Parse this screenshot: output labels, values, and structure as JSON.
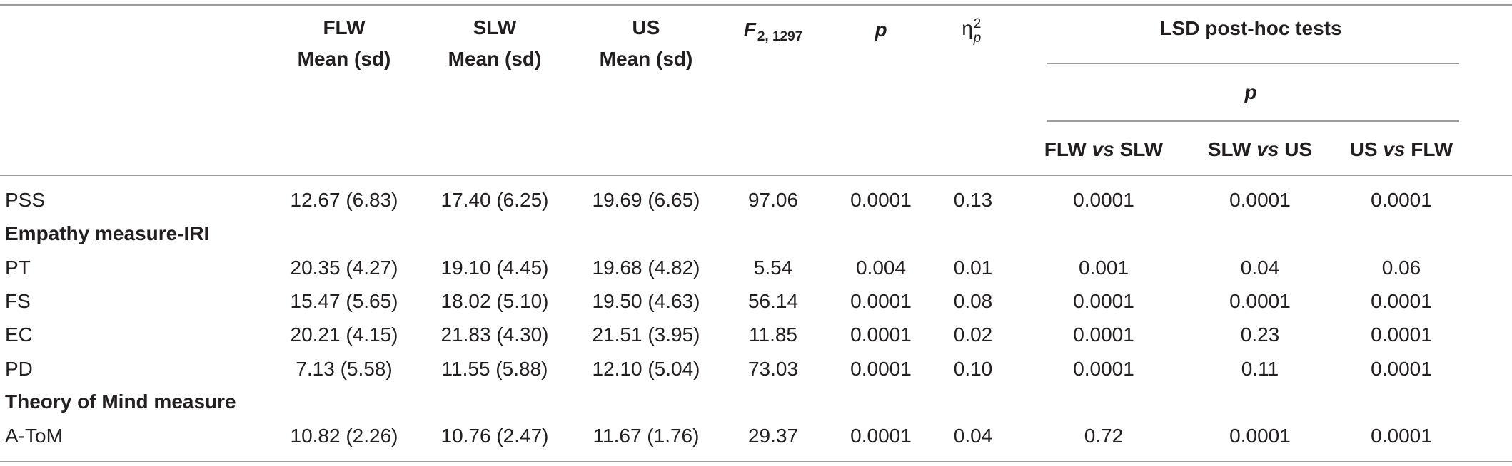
{
  "header": {
    "flw": {
      "group": "FLW",
      "stat": "Mean (sd)"
    },
    "slw": {
      "group": "SLW",
      "stat": "Mean (sd)"
    },
    "us": {
      "group": "US",
      "stat": "Mean (sd)"
    },
    "f": {
      "letter": "F",
      "df": "2, 1297"
    },
    "p": "p",
    "eta": {
      "symbol": "η",
      "sub": "p",
      "sup": "2"
    },
    "lsd": "LSD post-hoc tests",
    "lsd_p": "p",
    "comparisons": [
      {
        "a": "FLW",
        "vs": "vs",
        "b": "SLW"
      },
      {
        "a": "SLW",
        "vs": "vs",
        "b": "US"
      },
      {
        "a": "US",
        "vs": "vs",
        "b": "FLW"
      }
    ]
  },
  "rows": [
    {
      "label": "PSS",
      "flw": "12.67 (6.83)",
      "slw": "17.40 (6.25)",
      "us": "19.69 (6.65)",
      "f": "97.06",
      "p": "0.0001",
      "eta": "0.13",
      "flw_slw": "0.0001",
      "slw_us": "0.0001",
      "us_flw": "0.0001"
    },
    {
      "section": "Empathy measure-IRI"
    },
    {
      "label": "PT",
      "flw": "20.35 (4.27)",
      "slw": "19.10 (4.45)",
      "us": "19.68 (4.82)",
      "f": "5.54",
      "p": "0.004",
      "eta": "0.01",
      "flw_slw": "0.001",
      "slw_us": "0.04",
      "us_flw": "0.06"
    },
    {
      "label": "FS",
      "flw": "15.47 (5.65)",
      "slw": "18.02 (5.10)",
      "us": "19.50 (4.63)",
      "f": "56.14",
      "p": "0.0001",
      "eta": "0.08",
      "flw_slw": "0.0001",
      "slw_us": "0.0001",
      "us_flw": "0.0001"
    },
    {
      "label": "EC",
      "flw": "20.21 (4.15)",
      "slw": "21.83 (4.30)",
      "us": "21.51 (3.95)",
      "f": "11.85",
      "p": "0.0001",
      "eta": "0.02",
      "flw_slw": "0.0001",
      "slw_us": "0.23",
      "us_flw": "0.0001"
    },
    {
      "label": "PD",
      "flw": "7.13 (5.58)",
      "slw": "11.55 (5.88)",
      "us": "12.10 (5.04)",
      "f": "73.03",
      "p": "0.0001",
      "eta": "0.10",
      "flw_slw": "0.0001",
      "slw_us": "0.11",
      "us_flw": "0.0001"
    },
    {
      "section": "Theory of Mind measure"
    },
    {
      "label": "A-ToM",
      "flw": "10.82 (2.26)",
      "slw": "10.76 (2.47)",
      "us": "11.67 (1.76)",
      "f": "29.37",
      "p": "0.0001",
      "eta": "0.04",
      "flw_slw": "0.72",
      "slw_us": "0.0001",
      "us_flw": "0.0001"
    }
  ]
}
